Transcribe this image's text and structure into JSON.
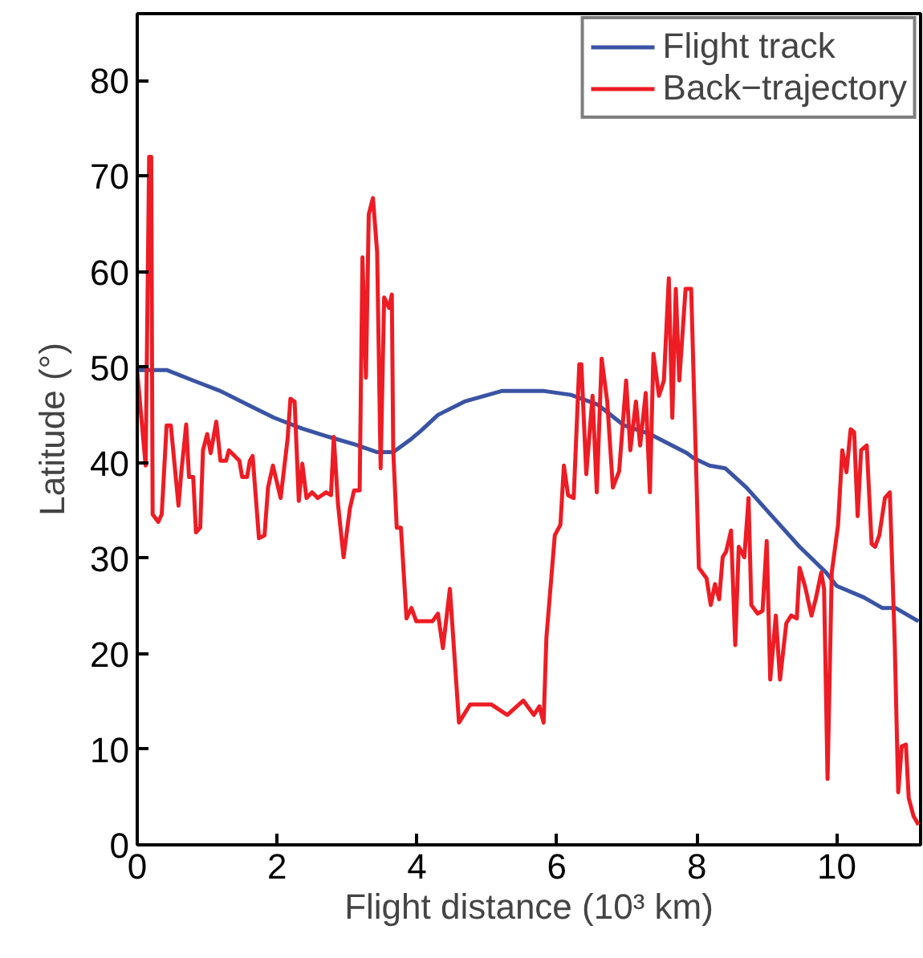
{
  "chart_data": {
    "type": "line",
    "xlabel": "Flight distance (10³ km)",
    "ylabel": "Latitude (°)",
    "xlim": [
      0,
      11.2
    ],
    "ylim": [
      0,
      87
    ],
    "xticks": [
      0,
      2,
      4,
      6,
      8,
      10
    ],
    "yticks": [
      0,
      10,
      20,
      30,
      40,
      50,
      60,
      70,
      80
    ],
    "grid": false,
    "legend": "top right",
    "line_style": "solid",
    "series": [
      {
        "name": "Flight track",
        "color": "#3a54a4",
        "x": [
          0,
          0.42,
          0.8,
          1.19,
          1.57,
          1.96,
          2.35,
          2.74,
          3.12,
          3.43,
          3.66,
          3.92,
          4.05,
          4.3,
          4.68,
          5.21,
          5.82,
          6.2,
          6.58,
          6.96,
          7.33,
          7.86,
          7.95,
          8.18,
          8.41,
          8.71,
          9.09,
          9.47,
          9.85,
          10.0,
          10.39,
          10.65,
          10.84,
          11.17
        ],
        "values": [
          49.7,
          49.7,
          48.6,
          47.5,
          46.1,
          44.7,
          43.6,
          42.7,
          41.9,
          41.1,
          41.1,
          42.5,
          43.3,
          45,
          46.4,
          47.5,
          47.5,
          47.1,
          46.1,
          43.9,
          43,
          41,
          40.5,
          39.7,
          39.4,
          37.4,
          34.3,
          31.2,
          28.5,
          27.1,
          25.9,
          24.8,
          24.8,
          23.4
        ]
      },
      {
        "name": "Back−trajectory",
        "color": "#ee1c24",
        "x": [
          0,
          0.12,
          0.17,
          0.2,
          0.22,
          0.3,
          0.35,
          0.42,
          0.48,
          0.59,
          0.63,
          0.7,
          0.74,
          0.8,
          0.84,
          0.9,
          0.94,
          1.0,
          1.05,
          1.13,
          1.19,
          1.27,
          1.31,
          1.38,
          1.46,
          1.5,
          1.57,
          1.61,
          1.65,
          1.74,
          1.82,
          1.87,
          1.94,
          2.05,
          2.15,
          2.19,
          2.25,
          2.31,
          2.36,
          2.42,
          2.5,
          2.58,
          2.7,
          2.77,
          2.81,
          2.87,
          2.95,
          3.04,
          3.1,
          3.18,
          3.22,
          3.27,
          3.31,
          3.37,
          3.43,
          3.48,
          3.53,
          3.6,
          3.64,
          3.66,
          3.71,
          3.77,
          3.85,
          3.92,
          3.99,
          4.22,
          4.3,
          4.37,
          4.47,
          4.6,
          4.76,
          5.06,
          5.29,
          5.52,
          5.67,
          5.75,
          5.81,
          5.85,
          5.97,
          6.05,
          6.1,
          6.16,
          6.24,
          6.32,
          6.35,
          6.42,
          6.51,
          6.57,
          6.64,
          6.72,
          6.8,
          6.89,
          6.99,
          7.05,
          7.13,
          7.19,
          7.27,
          7.33,
          7.38,
          7.46,
          7.53,
          7.6,
          7.65,
          7.7,
          7.75,
          7.84,
          7.92,
          8.03,
          8.14,
          8.2,
          8.26,
          8.32,
          8.37,
          8.42,
          8.49,
          8.55,
          8.6,
          8.68,
          8.74,
          8.78,
          8.87,
          8.94,
          9.0,
          9.05,
          9.13,
          9.19,
          9.28,
          9.35,
          9.43,
          9.47,
          9.55,
          9.64,
          9.7,
          9.78,
          9.82,
          9.87,
          9.93,
          10.02,
          10.08,
          10.14,
          10.2,
          10.25,
          10.3,
          10.35,
          10.43,
          10.5,
          10.55,
          10.61,
          10.69,
          10.76,
          10.83,
          10.88,
          10.93,
          10.99,
          11.03,
          11.1,
          11.17
        ],
        "values": [
          49.5,
          39.7,
          72,
          72,
          34.6,
          33.8,
          34.6,
          43.9,
          43.9,
          35.5,
          39,
          44,
          38.5,
          38.5,
          32.7,
          33.2,
          41.3,
          43,
          41,
          44.3,
          40.2,
          40.2,
          41.3,
          40.8,
          40.2,
          38.5,
          38.5,
          40.2,
          40.7,
          32.1,
          32.4,
          37.4,
          39.7,
          36.3,
          42.5,
          46.7,
          46.4,
          36,
          39.9,
          36.3,
          36.9,
          36.3,
          36.9,
          36.6,
          42.7,
          35.7,
          30.1,
          35.2,
          37.1,
          37.1,
          61.5,
          48.9,
          66,
          67.7,
          62,
          39.4,
          57.3,
          56.2,
          57.6,
          41.3,
          33.2,
          33.2,
          23.7,
          24.8,
          23.4,
          23.4,
          24.2,
          20.6,
          26.8,
          12.8,
          14.7,
          14.7,
          13.6,
          15.1,
          13.6,
          14.5,
          12.8,
          21.7,
          32.4,
          33.5,
          39.7,
          36.6,
          36.3,
          50.3,
          50.3,
          38.8,
          47,
          36.9,
          50.9,
          46.4,
          37.4,
          39.1,
          48.6,
          41.3,
          46.4,
          41.8,
          47.3,
          36.9,
          51.4,
          47,
          48.6,
          59.3,
          44.7,
          58.2,
          48.6,
          58.2,
          58.2,
          29,
          27.9,
          25.1,
          27.3,
          25.7,
          30.1,
          30.7,
          32.9,
          20.9,
          31.2,
          30.1,
          36.3,
          25.1,
          24.2,
          24.5,
          31.8,
          17.3,
          24,
          17.3,
          23.2,
          24,
          23.7,
          29,
          27,
          24,
          25.7,
          28.5,
          26.8,
          6.9,
          28.5,
          33.5,
          41.3,
          39,
          43.5,
          43.2,
          34.4,
          41.3,
          41.8,
          31.5,
          31.2,
          32.4,
          36.3,
          36.9,
          21.2,
          5.5,
          10.3,
          10.5,
          4.9,
          3,
          2.1
        ]
      }
    ]
  }
}
